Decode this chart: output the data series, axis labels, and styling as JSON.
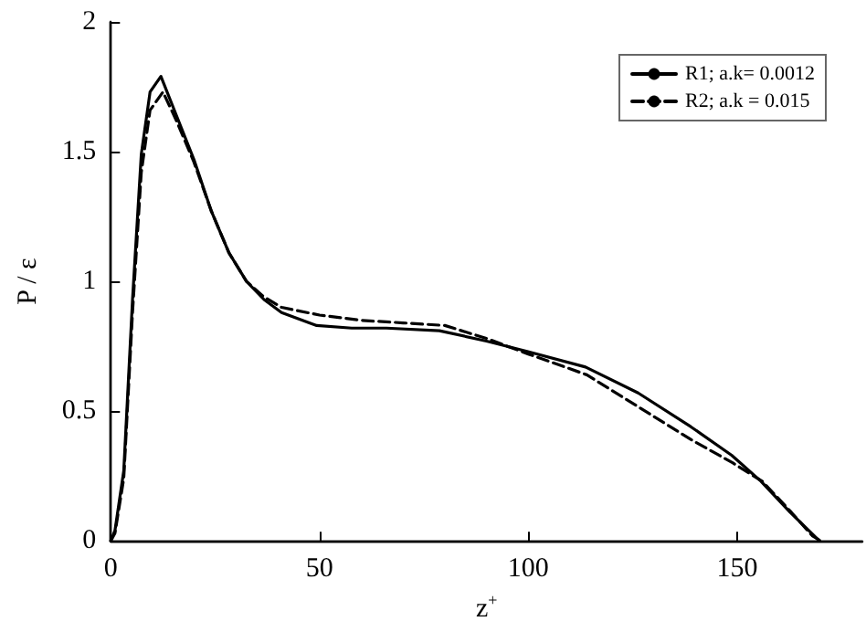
{
  "chart_data": {
    "type": "line",
    "xlabel": "z$^{+}$",
    "ylabel": "P / ε",
    "xlim": [
      0,
      180
    ],
    "xticks": [
      0,
      50,
      100,
      150
    ],
    "ylim": [
      0,
      2
    ],
    "yticks": [
      0,
      0.5,
      1,
      1.5,
      2
    ],
    "grid": false,
    "legend": "top right",
    "marker": "none",
    "series": [
      {
        "name": "R1; a.k= 0.0012",
        "color": "#000000",
        "line_style": "solid",
        "x": [
          0,
          1,
          3.1,
          5.2,
          7.3,
          9.4,
          12,
          15.7,
          19.9,
          24.1,
          28.3,
          32.5,
          36.7,
          40.9,
          49.3,
          57.7,
          66,
          78.7,
          90,
          99.7,
          113.7,
          126.3,
          138.9,
          148.7,
          155.7,
          162.7,
          169.7
        ],
        "values": [
          0,
          0.04,
          0.27,
          0.93,
          1.49,
          1.73,
          1.79,
          1.64,
          1.47,
          1.27,
          1.11,
          1.0,
          0.93,
          0.88,
          0.83,
          0.82,
          0.82,
          0.81,
          0.77,
          0.73,
          0.67,
          0.57,
          0.44,
          0.33,
          0.23,
          0.11,
          0
        ]
      },
      {
        "name": "R2; a.k = 0.015",
        "color": "#000000",
        "line_style": "dashed",
        "x": [
          0,
          1,
          3.1,
          5.2,
          7.3,
          9.4,
          12.5,
          15.7,
          19.9,
          24.1,
          28.3,
          32.5,
          36.7,
          40.9,
          50,
          60,
          70,
          80,
          90,
          100,
          114,
          126,
          139,
          149,
          156,
          163,
          168,
          170
        ],
        "values": [
          0,
          0.03,
          0.24,
          0.88,
          1.42,
          1.66,
          1.73,
          1.62,
          1.46,
          1.27,
          1.11,
          1.0,
          0.94,
          0.9,
          0.87,
          0.85,
          0.84,
          0.83,
          0.78,
          0.72,
          0.64,
          0.52,
          0.39,
          0.3,
          0.23,
          0.11,
          0.02,
          0
        ]
      }
    ]
  }
}
